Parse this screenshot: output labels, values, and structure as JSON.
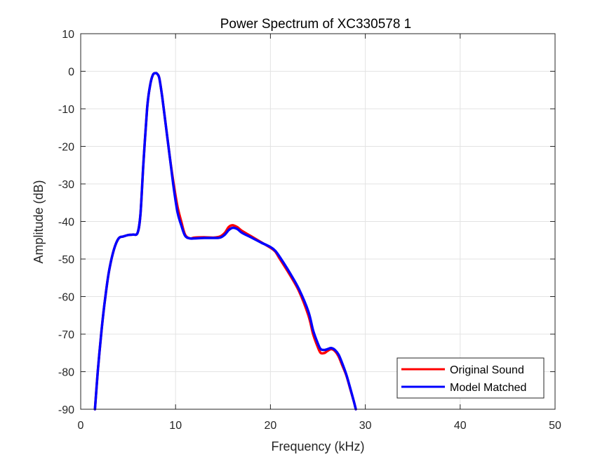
{
  "chart_data": {
    "type": "line",
    "title": "Power Spectrum of XC330578 1",
    "xlabel": "Frequency (kHz)",
    "ylabel": "Amplitude (dB)",
    "xlim": [
      0,
      50
    ],
    "ylim": [
      -90,
      10
    ],
    "xticks": [
      "0",
      "10",
      "20",
      "30",
      "40",
      "50"
    ],
    "yticks": [
      "10",
      "0",
      "-10",
      "-20",
      "-30",
      "-40",
      "-50",
      "-60",
      "-70",
      "-80",
      "-90"
    ],
    "grid": true,
    "legend": "bottom-right",
    "series": [
      {
        "name": "Original Sound",
        "color": "#ff0000",
        "x": [
          1.5,
          1.8,
          2.2,
          2.6,
          3.0,
          3.5,
          4.0,
          4.5,
          5.0,
          5.5,
          6.0,
          6.3,
          6.6,
          7.0,
          7.3,
          7.6,
          7.9,
          8.1,
          8.3,
          8.6,
          9.0,
          9.4,
          9.8,
          10.2,
          10.6,
          11.0,
          11.5,
          12.0,
          13.0,
          14.0,
          14.7,
          15.2,
          15.6,
          16.0,
          16.5,
          17.0,
          18.0,
          19.0,
          20.0,
          20.5,
          21.0,
          22.0,
          23.0,
          24.0,
          24.5,
          25.0,
          25.3,
          25.7,
          26.0,
          26.4,
          26.8,
          27.2,
          27.6,
          28.0,
          28.4,
          28.8,
          29.0
        ],
        "y": [
          -90,
          -80,
          -69,
          -60,
          -53,
          -47.5,
          -44.5,
          -44,
          -43.6,
          -43.5,
          -43,
          -38,
          -25,
          -10,
          -4,
          -1,
          -0.5,
          -0.8,
          -2,
          -7,
          -15,
          -23,
          -30,
          -36,
          -40,
          -43.5,
          -44.5,
          -44.3,
          -44.2,
          -44.3,
          -44,
          -43,
          -41.5,
          -41,
          -41.5,
          -42.5,
          -44,
          -45.5,
          -47,
          -48,
          -50,
          -54,
          -58.5,
          -65,
          -70,
          -73.5,
          -75,
          -75,
          -74.5,
          -74,
          -74.5,
          -76,
          -78.5,
          -81,
          -84.5,
          -88,
          -90
        ]
      },
      {
        "name": "Model Matched",
        "color": "#0000ff",
        "x": [
          1.5,
          1.8,
          2.2,
          2.6,
          3.0,
          3.5,
          4.0,
          4.5,
          5.0,
          5.5,
          6.0,
          6.3,
          6.6,
          7.0,
          7.3,
          7.6,
          7.9,
          8.1,
          8.3,
          8.6,
          9.0,
          9.4,
          9.8,
          10.2,
          10.6,
          11.0,
          11.5,
          12.0,
          13.0,
          14.0,
          14.7,
          15.2,
          15.6,
          16.0,
          16.5,
          17.0,
          18.0,
          19.0,
          20.0,
          20.5,
          21.0,
          22.0,
          23.0,
          24.0,
          24.5,
          25.0,
          25.3,
          25.7,
          26.0,
          26.4,
          26.8,
          27.2,
          27.6,
          28.0,
          28.4,
          28.8,
          29.0
        ],
        "y": [
          -90,
          -80,
          -69,
          -60,
          -53,
          -47.5,
          -44.5,
          -44,
          -43.6,
          -43.5,
          -43,
          -38,
          -25,
          -10,
          -4,
          -1,
          -0.5,
          -0.8,
          -2,
          -7,
          -15,
          -23,
          -31,
          -37.5,
          -41,
          -43.8,
          -44.5,
          -44.5,
          -44.4,
          -44.4,
          -44.3,
          -43.5,
          -42.3,
          -41.7,
          -42,
          -43,
          -44.3,
          -45.6,
          -46.8,
          -47.8,
          -49.5,
          -53.5,
          -58,
          -64,
          -69,
          -72.5,
          -74,
          -74.2,
          -74,
          -73.7,
          -74.2,
          -75.5,
          -78,
          -80.8,
          -84.3,
          -88,
          -90
        ]
      }
    ]
  }
}
